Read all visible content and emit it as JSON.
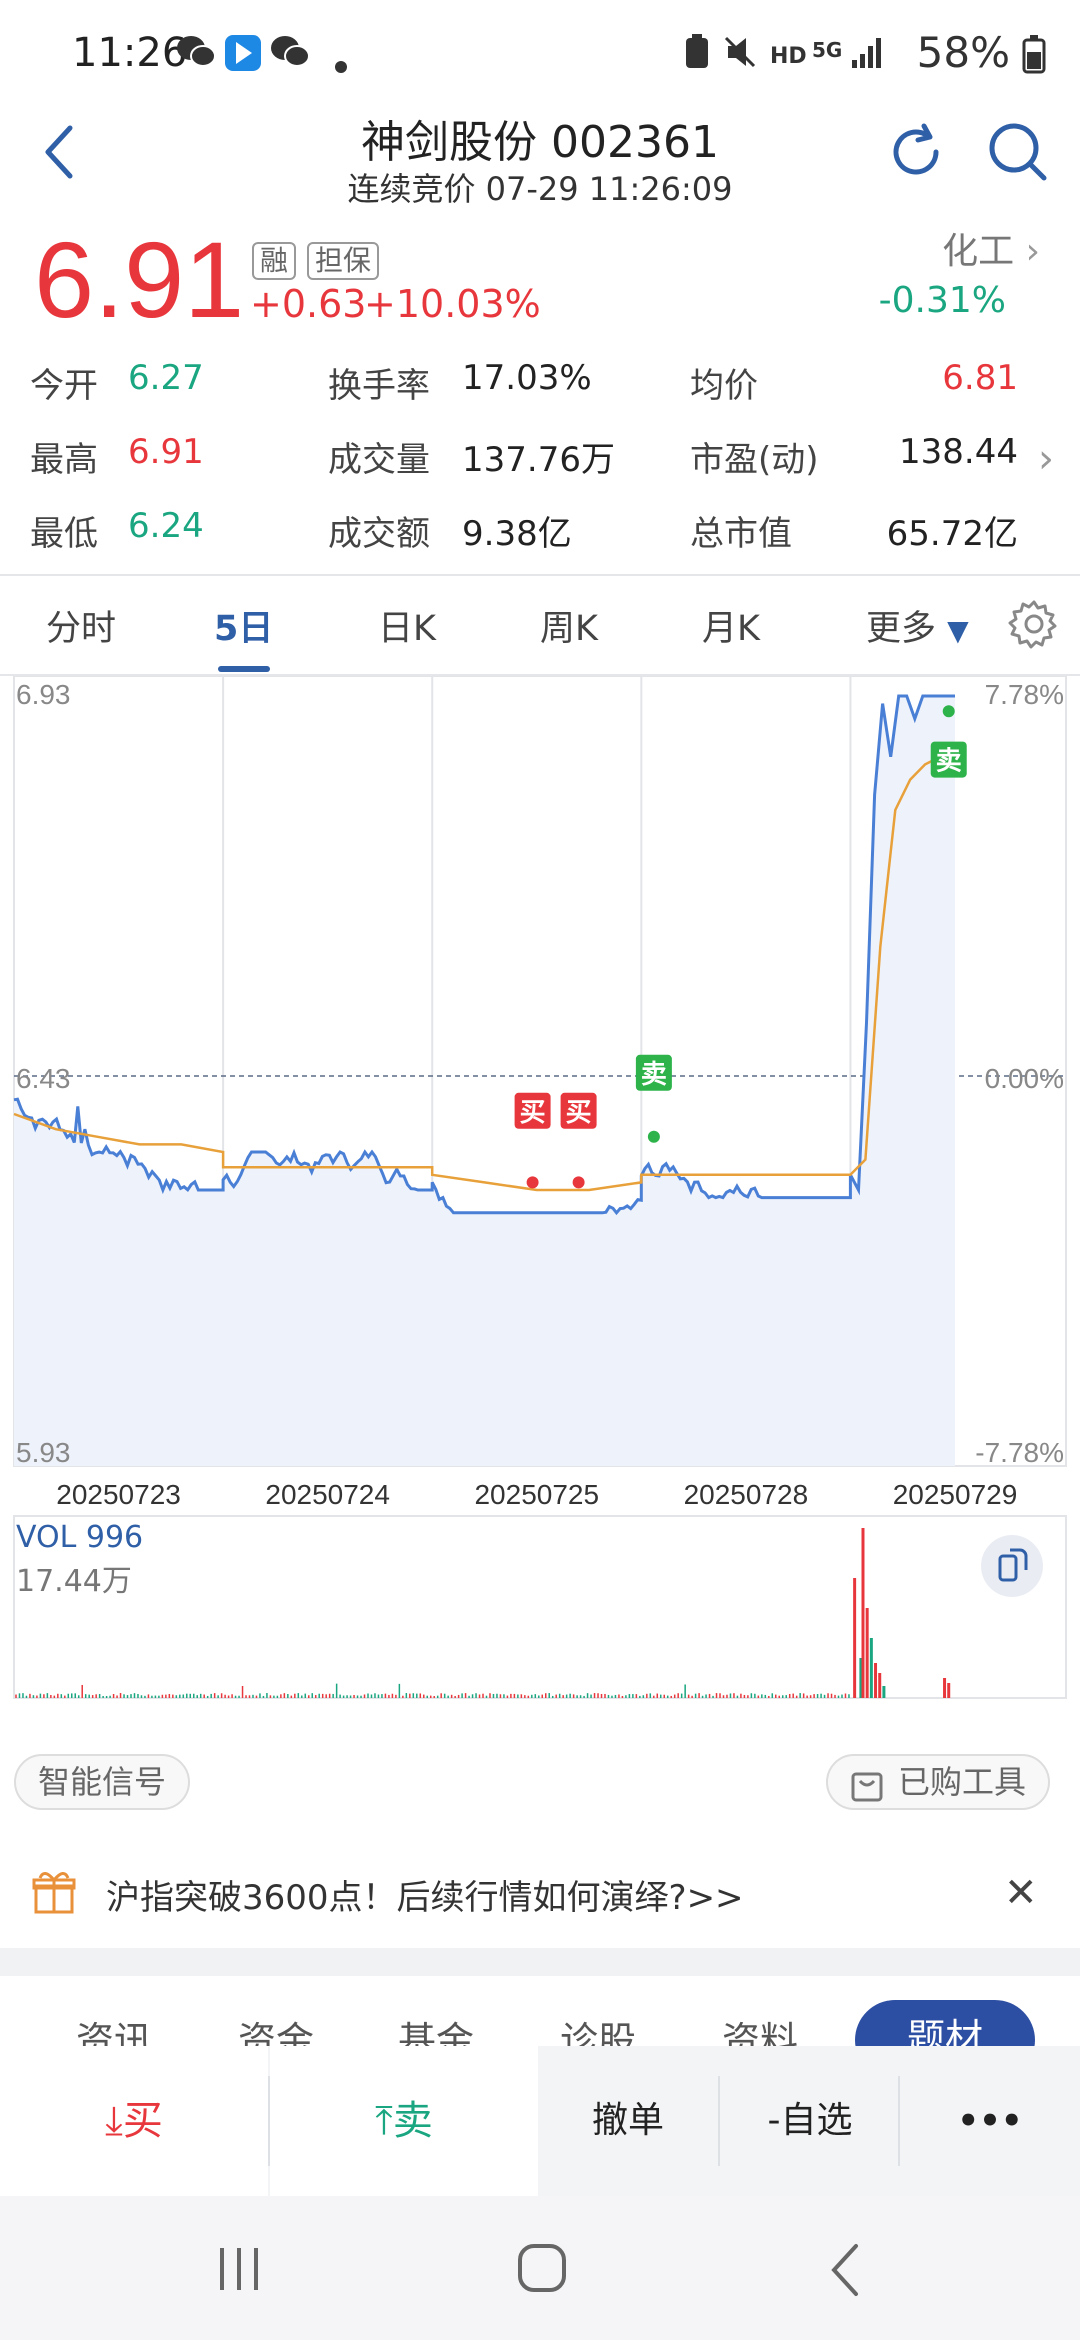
{
  "status_bar": {
    "time": "11:26",
    "battery": "58%",
    "net": "5G",
    "hd": "HD"
  },
  "header": {
    "title": "神剑股份 002361",
    "subtitle": "连续竞价 07-29 11:26:09"
  },
  "quote": {
    "price": "6.91",
    "change": "+0.63",
    "change_pct": "+10.03%",
    "tag_margin": "融",
    "tag_guarantee": "担保",
    "sector": "化工",
    "sector_change": "-0.31%"
  },
  "stats": {
    "open_label": "今开",
    "open": "6.27",
    "high_label": "最高",
    "high": "6.91",
    "low_label": "最低",
    "low": "6.24",
    "turnover_rate_label": "换手率",
    "turnover_rate": "17.03%",
    "volume_label": "成交量",
    "volume": "137.76万",
    "amount_label": "成交额",
    "amount": "9.38亿",
    "avg_label": "均价",
    "avg": "6.81",
    "pe_label": "市盈(动)",
    "pe": "138.44",
    "mcap_label": "总市值",
    "mcap": "65.72亿"
  },
  "tabs": [
    "分时",
    "5日",
    "日K",
    "周K",
    "月K",
    "更多"
  ],
  "chart_data": {
    "type": "line",
    "y_left_ticks": [
      "6.93",
      "6.43",
      "5.93"
    ],
    "y_right_ticks": [
      "7.78%",
      "0.00%",
      "-7.78%"
    ],
    "x_labels": [
      "20250723",
      "20250724",
      "20250725",
      "20250728",
      "20250729"
    ],
    "ylim": [
      5.93,
      6.93
    ],
    "prev_close": 6.43,
    "markers": [
      {
        "label": "买",
        "day": "20250725",
        "type": "buy"
      },
      {
        "label": "买",
        "day": "20250725",
        "type": "buy"
      },
      {
        "label": "卖",
        "day": "20250728",
        "type": "sell"
      },
      {
        "label": "卖",
        "day": "20250729",
        "type": "sell"
      }
    ],
    "series": [
      {
        "name": "price",
        "color": "#4a7fd6"
      },
      {
        "name": "avg",
        "color": "#e8a13a"
      }
    ]
  },
  "volume": {
    "label": "VOL 996",
    "max": "17.44万"
  },
  "tools": {
    "signal": "智能信号",
    "purchased": "已购工具"
  },
  "banner": {
    "text": "沪指突破3600点！后续行情如何演绎?>>"
  },
  "subtabs": [
    "资讯",
    "资金",
    "基金",
    "诊股",
    "资料",
    "题材"
  ],
  "trade": {
    "buy": "买",
    "sell": "卖",
    "cancel": "撤单",
    "watchlist": "-自选",
    "more": "•••"
  },
  "colors": {
    "up": "#e8373c",
    "down": "#1aa680",
    "accent": "#2f5fa7"
  }
}
